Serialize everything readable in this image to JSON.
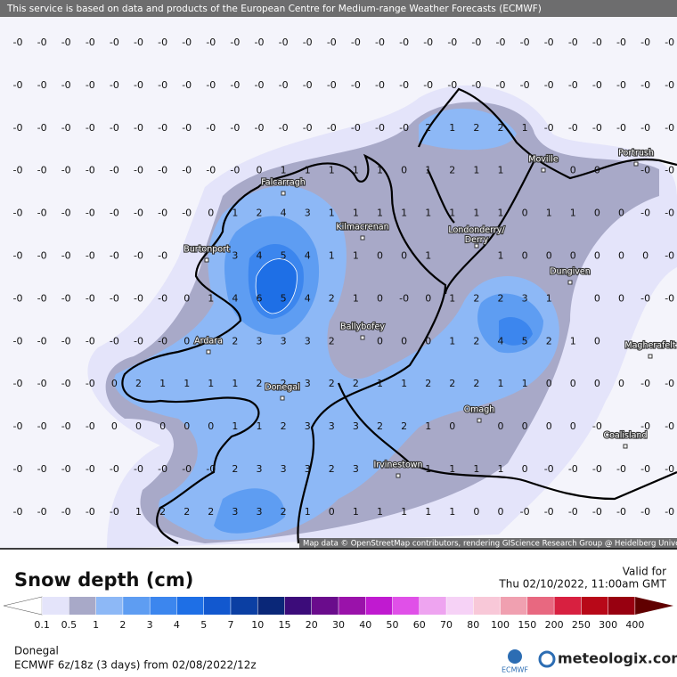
{
  "header": "This service is based on data and products of the European Centre for Medium-range Weather Forecasts (ECMWF)",
  "attribution": "Map data © OpenStreetMap contributors, rendering GIScience Research Group @ Heidelberg University",
  "towns": [
    "Falcarragh",
    "Kilmacrenan",
    "Londonderry/\nDerry",
    "Moville",
    "Portrush",
    "Burtonport",
    "Dungiven",
    "Ballybofey",
    "Ardara",
    "Magherafelt",
    "Donegal",
    "Omagh",
    "Coalisland",
    "Irvinestown"
  ],
  "grid": [
    [
      "-0",
      "-0",
      "-0",
      "-0",
      "-0",
      "-0",
      "-0",
      "-0",
      "-0",
      "-0",
      "-0",
      "-0",
      "-0",
      "-0",
      "-0",
      "-0",
      "-0",
      "-0",
      "-0",
      "-0",
      "-0",
      "-0",
      "-0",
      "-0",
      "-0",
      "-0",
      "-0",
      "-0"
    ],
    [
      "-0",
      "-0",
      "-0",
      "-0",
      "-0",
      "-0",
      "-0",
      "-0",
      "-0",
      "-0",
      "-0",
      "-0",
      "-0",
      "-0",
      "-0",
      "-0",
      "-0",
      "-0",
      "-0",
      "-0",
      "-0",
      "-0",
      "-0",
      "-0",
      "-0",
      "-0",
      "-0",
      "-0"
    ],
    [
      "-0",
      "-0",
      "-0",
      "-0",
      "-0",
      "-0",
      "-0",
      "-0",
      "-0",
      "-0",
      "-0",
      "-0",
      "-0",
      "-0",
      "-0",
      "-0",
      "-0",
      "2",
      "1",
      "2",
      "2",
      "1",
      "-0",
      "-0",
      "-0",
      "-0",
      "-0",
      "-0"
    ],
    [
      "-0",
      "-0",
      "-0",
      "-0",
      "-0",
      "-0",
      "-0",
      "-0",
      "-0",
      "-0",
      "0",
      "1",
      "1",
      "1",
      "1",
      "1",
      "0",
      "1",
      "2",
      "1",
      "1",
      null,
      null,
      "0",
      "0",
      null,
      "-0",
      "-0"
    ],
    [
      "-0",
      "-0",
      "-0",
      "-0",
      "-0",
      "-0",
      "-0",
      "-0",
      "0",
      "1",
      "2",
      "4",
      "3",
      "1",
      "1",
      "1",
      "1",
      "1",
      "1",
      "1",
      "1",
      "0",
      "1",
      "1",
      "0",
      "0",
      "-0",
      "-0"
    ],
    [
      "-0",
      "-0",
      "-0",
      "-0",
      "-0",
      "-0",
      "-0",
      null,
      null,
      "3",
      "4",
      "5",
      "4",
      "1",
      "1",
      "0",
      "0",
      "1",
      null,
      null,
      "1",
      "0",
      "0",
      "0",
      "0",
      "0",
      "0",
      "-0"
    ],
    [
      "-0",
      "-0",
      "-0",
      "-0",
      "-0",
      "-0",
      "-0",
      "0",
      "1",
      "4",
      "6",
      "5",
      "4",
      "2",
      "1",
      "0",
      "-0",
      "0",
      "1",
      "2",
      "2",
      "3",
      "1",
      null,
      "0",
      "0",
      "-0",
      "-0"
    ],
    [
      "-0",
      "-0",
      "-0",
      "-0",
      "-0",
      "-0",
      "-0",
      "0",
      null,
      "2",
      "3",
      "3",
      "3",
      "2",
      null,
      "0",
      "0",
      "0",
      "1",
      "2",
      "4",
      "5",
      "2",
      "1",
      "0",
      null,
      null,
      null
    ],
    [
      "-0",
      "-0",
      "-0",
      "-0",
      "0",
      "2",
      "1",
      "1",
      "1",
      "1",
      "2",
      "2",
      "3",
      "2",
      "2",
      "1",
      "1",
      "2",
      "2",
      "2",
      "1",
      "1",
      "0",
      "0",
      "0",
      "0",
      "-0",
      "-0"
    ],
    [
      "-0",
      "-0",
      "-0",
      "-0",
      "0",
      "0",
      "0",
      "0",
      "0",
      "1",
      "1",
      "2",
      "3",
      "3",
      "3",
      "2",
      "2",
      "1",
      "0",
      null,
      "0",
      "0",
      "0",
      "0",
      "-0",
      null,
      "-0",
      "-0"
    ],
    [
      "-0",
      "-0",
      "-0",
      "-0",
      "-0",
      "-0",
      "-0",
      "-0",
      "-0",
      "2",
      "3",
      "3",
      "3",
      "2",
      "3",
      null,
      null,
      "1",
      "1",
      "1",
      "1",
      "0",
      "-0",
      "-0",
      "-0",
      "-0",
      "-0",
      "-0"
    ],
    [
      "-0",
      "-0",
      "-0",
      "-0",
      "-0",
      "1",
      "2",
      "2",
      "2",
      "3",
      "3",
      "2",
      "1",
      "0",
      "1",
      "1",
      "1",
      "1",
      "1",
      "0",
      "0",
      "-0",
      "-0",
      "-0",
      "-0",
      "-0",
      "-0",
      "-0"
    ]
  ],
  "legend": {
    "title": "Snow depth (cm)",
    "levels": [
      0.1,
      0.5,
      1,
      2,
      3,
      4,
      5,
      7,
      10,
      15,
      20,
      30,
      40,
      50,
      60,
      70,
      80,
      100,
      150,
      200,
      250,
      300,
      400
    ],
    "colors": [
      "#ffffff",
      "#e4e4fa",
      "#a8a9c8",
      "#8db8f6",
      "#5e9df2",
      "#3c86ee",
      "#1e6fe6",
      "#1258cf",
      "#0b3fa3",
      "#0a2778",
      "#3c0c7a",
      "#6a0c8c",
      "#9a12aa",
      "#c01ad0",
      "#e050e8",
      "#eea4f0",
      "#f6d2f6",
      "#f8c8d8",
      "#f0a0b0",
      "#e86880",
      "#d82040",
      "#b80818",
      "#980010",
      "#600000"
    ]
  },
  "valid_label": "Valid for",
  "valid_time": "Thu 02/10/2022, 11:00am GMT",
  "region": "Donegal",
  "model": "ECMWF 6z/18z (3 days) from 02/08/2022/12z",
  "logo_ecmwf": "ECMWF",
  "logo_site": "meteologix.com"
}
